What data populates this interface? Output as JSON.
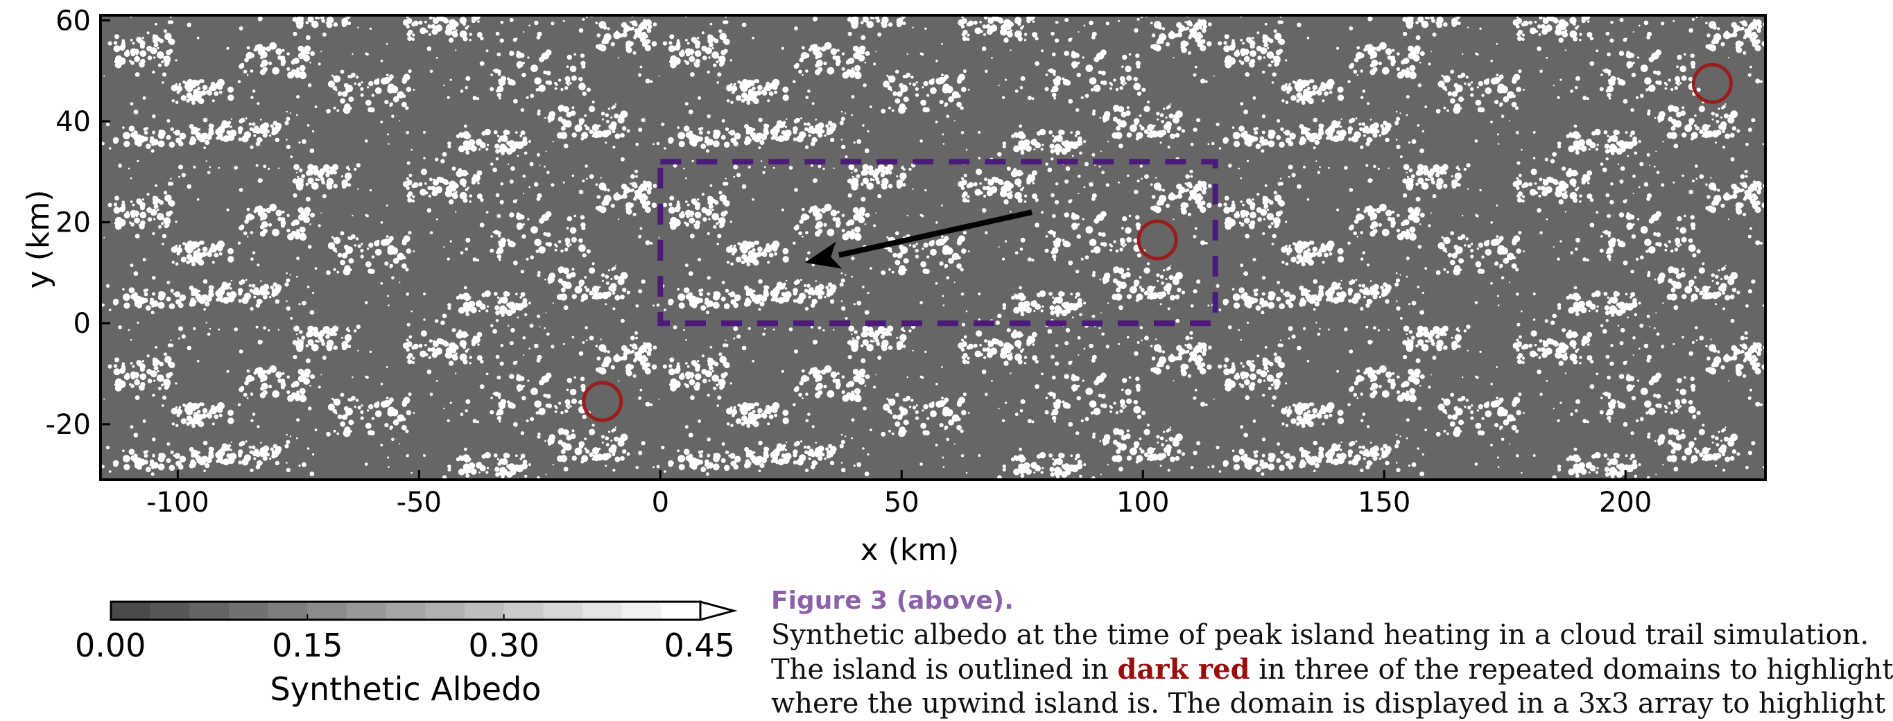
{
  "chart_data": {
    "type": "heatmap",
    "title": "",
    "xlabel": "x (km)",
    "ylabel": "y (km)",
    "xlim": [
      -116,
      229
    ],
    "ylim": [
      -31,
      61
    ],
    "x_ticks": [
      -100,
      -50,
      0,
      50,
      100,
      150,
      200
    ],
    "y_ticks": [
      -20,
      0,
      20,
      40,
      60
    ],
    "x_tick_labels": [
      "-100",
      "-50",
      "0",
      "50",
      "100",
      "150",
      "200"
    ],
    "y_tick_labels": [
      "-20",
      "0",
      "20",
      "40",
      "60"
    ],
    "domain_box": {
      "x": [
        0,
        115
      ],
      "y": [
        0,
        32
      ],
      "color": "#4b1a7a",
      "style": "dashed"
    },
    "wind_arrow": {
      "from": [
        77,
        22
      ],
      "to": [
        30,
        12
      ],
      "color": "#000000"
    },
    "island_markers": [
      {
        "x": -12,
        "y": -15.5
      },
      {
        "x": 103,
        "y": 16.5
      },
      {
        "x": 218,
        "y": 47.5
      }
    ],
    "island_color": "#9b1c1c",
    "background_color": "#666666",
    "cloud_color": "#ffffff",
    "colorbar": {
      "min": 0.0,
      "max": 0.45,
      "ticks": [
        0.0,
        0.15,
        0.3,
        0.45
      ],
      "tick_labels": [
        "0.00",
        "0.15",
        "0.30",
        "0.45"
      ],
      "label": "Synthetic Albedo",
      "extend": "max"
    }
  },
  "caption": {
    "title": "Figure 3 (above).",
    "line1": "Synthetic albedo at the time of peak island heating in a cloud trail simulation.",
    "line2_pre": "The island is outlined in ",
    "line2_highlight": "dark red",
    "line2_post": " in three of the repeated domains to highlight",
    "line3": "where the upwind island is. The domain is displayed in a 3x3 array to highlight"
  }
}
